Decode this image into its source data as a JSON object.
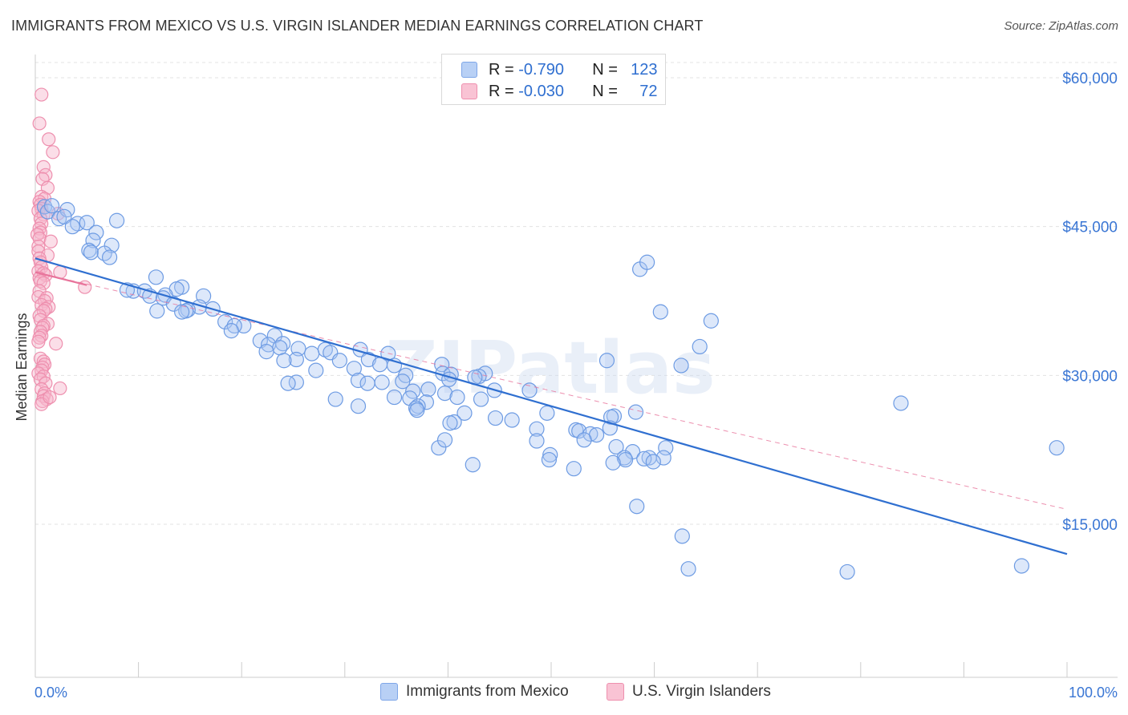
{
  "title": "IMMIGRANTS FROM MEXICO VS U.S. VIRGIN ISLANDER MEDIAN EARNINGS CORRELATION CHART",
  "source": "Source: ZipAtlas.com",
  "watermark": "ZIPatlas",
  "legend": {
    "r_label": "R =",
    "n_label": "N =",
    "series": [
      {
        "name": "Immigrants from Mexico",
        "r": "-0.790",
        "n": "123",
        "color": "#2f6fd0"
      },
      {
        "name": "U.S. Virgin Islanders",
        "r": "-0.030",
        "n": "72",
        "color": "#e8749b"
      }
    ]
  },
  "chart_data": {
    "type": "scatter",
    "title": "IMMIGRANTS FROM MEXICO VS U.S. VIRGIN ISLANDER MEDIAN EARNINGS CORRELATION CHART",
    "xlabel": "",
    "ylabel": "Median Earnings",
    "x_tick_labels": [
      "0.0%",
      "100.0%"
    ],
    "y_tick_labels": [
      "$15,000",
      "$30,000",
      "$45,000",
      "$60,000"
    ],
    "y_ticks": [
      15000,
      30000,
      45000,
      60000
    ],
    "xlim": [
      0,
      100
    ],
    "ylim": [
      0,
      62000
    ],
    "grid": true,
    "legend_position": "top-center",
    "series": [
      {
        "name": "Immigrants from Mexico",
        "color": "#2f6fd0",
        "trend": {
          "x": [
            0,
            100
          ],
          "y": [
            41800,
            12000
          ],
          "style": "solid"
        },
        "points": [
          [
            0.9,
            47000
          ],
          [
            1.2,
            46500
          ],
          [
            1.6,
            47100
          ],
          [
            2.3,
            45800
          ],
          [
            3.1,
            46700
          ],
          [
            2.8,
            46000
          ],
          [
            4.1,
            45300
          ],
          [
            5.0,
            45400
          ],
          [
            3.6,
            45000
          ],
          [
            5.9,
            44400
          ],
          [
            7.9,
            45600
          ],
          [
            5.6,
            43600
          ],
          [
            7.4,
            43100
          ],
          [
            5.2,
            42600
          ],
          [
            5.4,
            42400
          ],
          [
            6.7,
            42300
          ],
          [
            7.2,
            41900
          ],
          [
            11.7,
            39900
          ],
          [
            14.2,
            38900
          ],
          [
            13.7,
            38700
          ],
          [
            9.5,
            38500
          ],
          [
            10.6,
            38500
          ],
          [
            8.9,
            38600
          ],
          [
            12.6,
            38100
          ],
          [
            11.1,
            38000
          ],
          [
            16.3,
            38000
          ],
          [
            12.4,
            37800
          ],
          [
            13.4,
            37200
          ],
          [
            15.9,
            36900
          ],
          [
            14.8,
            36600
          ],
          [
            14.6,
            36500
          ],
          [
            17.2,
            36700
          ],
          [
            11.8,
            36500
          ],
          [
            14.2,
            36400
          ],
          [
            18.4,
            35400
          ],
          [
            20.2,
            35000
          ],
          [
            19.3,
            35000
          ],
          [
            19.0,
            34500
          ],
          [
            23.2,
            34000
          ],
          [
            21.8,
            33500
          ],
          [
            24.0,
            33200
          ],
          [
            22.6,
            33100
          ],
          [
            23.7,
            32800
          ],
          [
            25.5,
            32700
          ],
          [
            28.1,
            32600
          ],
          [
            28.6,
            32300
          ],
          [
            31.5,
            32600
          ],
          [
            34.2,
            32200
          ],
          [
            22.4,
            32400
          ],
          [
            26.8,
            32200
          ],
          [
            29.5,
            31500
          ],
          [
            25.3,
            31600
          ],
          [
            24.1,
            31500
          ],
          [
            32.3,
            31600
          ],
          [
            33.4,
            31100
          ],
          [
            34.8,
            31000
          ],
          [
            39.4,
            31100
          ],
          [
            30.9,
            30700
          ],
          [
            27.2,
            30500
          ],
          [
            39.5,
            30200
          ],
          [
            40.3,
            30100
          ],
          [
            35.9,
            30000
          ],
          [
            43.6,
            30200
          ],
          [
            40.1,
            29600
          ],
          [
            43.0,
            29900
          ],
          [
            42.6,
            29800
          ],
          [
            31.3,
            29500
          ],
          [
            32.2,
            29200
          ],
          [
            33.6,
            29300
          ],
          [
            35.6,
            29400
          ],
          [
            25.3,
            29300
          ],
          [
            24.5,
            29200
          ],
          [
            38.1,
            28600
          ],
          [
            39.7,
            28200
          ],
          [
            36.6,
            28400
          ],
          [
            44.5,
            28500
          ],
          [
            47.9,
            28500
          ],
          [
            29.1,
            27600
          ],
          [
            36.3,
            27700
          ],
          [
            37.9,
            27300
          ],
          [
            34.8,
            27800
          ],
          [
            40.9,
            27800
          ],
          [
            31.3,
            26900
          ],
          [
            43.2,
            27600
          ],
          [
            37.1,
            26900
          ],
          [
            36.9,
            26700
          ],
          [
            37.0,
            26500
          ],
          [
            41.6,
            26200
          ],
          [
            49.6,
            26200
          ],
          [
            58.2,
            26300
          ],
          [
            56.1,
            25900
          ],
          [
            55.8,
            25800
          ],
          [
            44.6,
            25700
          ],
          [
            46.2,
            25500
          ],
          [
            40.6,
            25300
          ],
          [
            40.2,
            25200
          ],
          [
            55.7,
            24700
          ],
          [
            48.6,
            24600
          ],
          [
            52.4,
            24500
          ],
          [
            52.7,
            24400
          ],
          [
            53.8,
            24100
          ],
          [
            54.4,
            24000
          ],
          [
            48.6,
            23400
          ],
          [
            53.2,
            23500
          ],
          [
            56.3,
            22800
          ],
          [
            61.1,
            22700
          ],
          [
            57.9,
            22300
          ],
          [
            49.9,
            22000
          ],
          [
            57.1,
            21700
          ],
          [
            60.9,
            21700
          ],
          [
            59.5,
            21700
          ],
          [
            59.0,
            21600
          ],
          [
            57.2,
            21500
          ],
          [
            59.9,
            21300
          ],
          [
            56.0,
            21200
          ],
          [
            49.8,
            21500
          ],
          [
            52.2,
            20600
          ],
          [
            42.4,
            21000
          ],
          [
            39.1,
            22700
          ],
          [
            39.7,
            23500
          ],
          [
            58.3,
            16800
          ],
          [
            62.7,
            13800
          ],
          [
            63.3,
            10500
          ],
          [
            78.7,
            10200
          ],
          [
            64.4,
            32900
          ],
          [
            55.4,
            31500
          ],
          [
            60.6,
            36400
          ],
          [
            58.6,
            40700
          ],
          [
            59.3,
            41400
          ],
          [
            62.6,
            31000
          ],
          [
            65.5,
            35500
          ],
          [
            83.9,
            27200
          ],
          [
            99.0,
            22700
          ],
          [
            95.6,
            10800
          ]
        ]
      },
      {
        "name": "U.S. Virgin Islanders",
        "color": "#e8749b",
        "trend": {
          "x": [
            0,
            5
          ],
          "y": [
            40400,
            39100
          ],
          "style": "solid"
        },
        "trend_extension": {
          "x": [
            0,
            100
          ],
          "y": [
            40400,
            16500
          ],
          "style": "dashed"
        },
        "points": [
          [
            0.6,
            58300
          ],
          [
            0.4,
            55400
          ],
          [
            1.3,
            53800
          ],
          [
            1.7,
            52500
          ],
          [
            0.8,
            51000
          ],
          [
            1.0,
            50200
          ],
          [
            0.7,
            49800
          ],
          [
            1.2,
            48900
          ],
          [
            0.6,
            48000
          ],
          [
            0.9,
            47800
          ],
          [
            0.4,
            47500
          ],
          [
            0.5,
            47200
          ],
          [
            0.6,
            46800
          ],
          [
            0.3,
            46600
          ],
          [
            2.2,
            46300
          ],
          [
            0.8,
            46200
          ],
          [
            0.5,
            45800
          ],
          [
            0.6,
            45300
          ],
          [
            0.4,
            44800
          ],
          [
            0.5,
            44400
          ],
          [
            0.2,
            44200
          ],
          [
            0.4,
            43800
          ],
          [
            1.5,
            43500
          ],
          [
            0.3,
            43000
          ],
          [
            0.3,
            42500
          ],
          [
            1.2,
            42100
          ],
          [
            0.4,
            41800
          ],
          [
            0.5,
            41400
          ],
          [
            0.6,
            40900
          ],
          [
            0.3,
            40500
          ],
          [
            0.8,
            40300
          ],
          [
            1.0,
            40100
          ],
          [
            2.4,
            40400
          ],
          [
            0.4,
            39800
          ],
          [
            0.5,
            39500
          ],
          [
            0.8,
            39300
          ],
          [
            4.8,
            38900
          ],
          [
            0.4,
            38500
          ],
          [
            0.3,
            37900
          ],
          [
            1.1,
            37800
          ],
          [
            0.9,
            37500
          ],
          [
            0.6,
            37100
          ],
          [
            1.3,
            36900
          ],
          [
            1.0,
            36700
          ],
          [
            0.8,
            36500
          ],
          [
            0.4,
            36000
          ],
          [
            0.5,
            35600
          ],
          [
            1.2,
            35200
          ],
          [
            0.8,
            35000
          ],
          [
            0.7,
            34800
          ],
          [
            0.5,
            34400
          ],
          [
            0.6,
            34000
          ],
          [
            0.4,
            33800
          ],
          [
            0.3,
            33400
          ],
          [
            2.0,
            33200
          ],
          [
            0.5,
            31700
          ],
          [
            0.8,
            31400
          ],
          [
            0.9,
            31100
          ],
          [
            0.7,
            30800
          ],
          [
            0.6,
            30500
          ],
          [
            0.3,
            30200
          ],
          [
            0.8,
            29900
          ],
          [
            0.5,
            29600
          ],
          [
            1.0,
            29200
          ],
          [
            2.4,
            28700
          ],
          [
            0.6,
            28600
          ],
          [
            0.9,
            28200
          ],
          [
            0.8,
            27900
          ],
          [
            1.1,
            27600
          ],
          [
            0.7,
            27400
          ],
          [
            0.6,
            27100
          ],
          [
            1.4,
            27800
          ]
        ]
      }
    ]
  }
}
